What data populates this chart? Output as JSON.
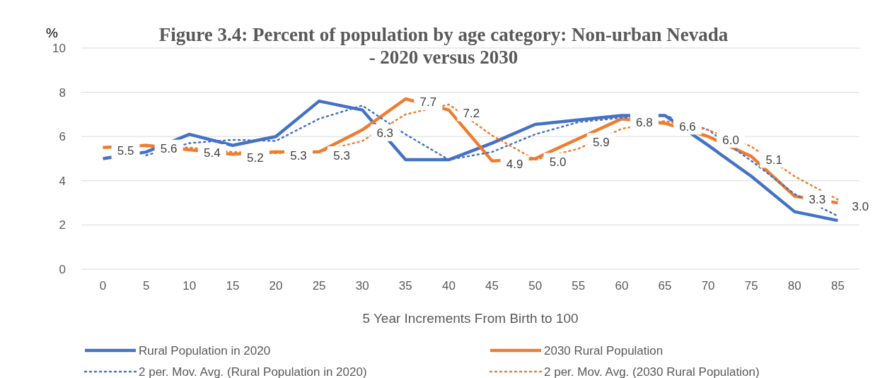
{
  "chart_data": {
    "type": "line",
    "title": "Figure 3.4: Percent of population by age category: Non-urban Nevada - 2020 versus 2030",
    "xlabel": "5 Year Increments From Birth to 100",
    "ylabel": "%",
    "categories": [
      "0",
      "5",
      "10",
      "15",
      "20",
      "25",
      "30",
      "35",
      "40",
      "45",
      "50",
      "55",
      "60",
      "65",
      "70",
      "75",
      "80",
      "85"
    ],
    "ylim": [
      0,
      10
    ],
    "yticks": [
      0,
      2,
      4,
      6,
      8,
      10
    ],
    "grid": "y",
    "legend": "bottom",
    "marker": "none",
    "series": [
      {
        "name": "Rural Population in 2020",
        "color": "#4472c4",
        "line_style": "solid",
        "values": [
          5.0,
          5.3,
          6.1,
          5.6,
          6.0,
          7.6,
          7.2,
          4.95,
          4.95,
          5.7,
          6.55,
          6.75,
          6.95,
          6.95,
          5.6,
          4.2,
          2.6,
          2.2
        ]
      },
      {
        "name": "2030 Rural Population",
        "color": "#ed7d31",
        "line_style": "solid",
        "values": [
          5.5,
          5.6,
          5.4,
          5.2,
          5.3,
          5.3,
          6.3,
          7.7,
          7.2,
          4.9,
          5.0,
          5.9,
          6.8,
          6.6,
          6.0,
          5.1,
          3.3,
          3.0
        ],
        "value_labels": [
          "5.5",
          "5.6",
          "5.4",
          "5.2",
          "5.3",
          "5.3",
          "6.3",
          "7.7",
          "7.2",
          "4.9",
          "5.0",
          "5.9",
          "6.8",
          "6.6",
          "6.0",
          "5.1",
          "3.3",
          "3.0"
        ]
      },
      {
        "name": "2 per. Mov. Avg. (Rural Population in 2020)",
        "color": "#4472c4",
        "line_style": "dotted",
        "values": [
          null,
          5.15,
          5.7,
          5.85,
          5.8,
          6.8,
          7.4,
          6.1,
          4.95,
          5.3,
          6.1,
          6.65,
          6.85,
          6.95,
          6.3,
          4.9,
          3.4,
          2.4
        ]
      },
      {
        "name": "2 per. Mov. Avg. (2030 Rural Population)",
        "color": "#ed7d31",
        "line_style": "dotted",
        "values": [
          null,
          5.55,
          5.5,
          5.3,
          5.25,
          5.3,
          5.8,
          7.0,
          7.45,
          6.05,
          4.95,
          5.45,
          6.35,
          6.7,
          6.3,
          5.55,
          4.2,
          3.15
        ]
      }
    ]
  }
}
